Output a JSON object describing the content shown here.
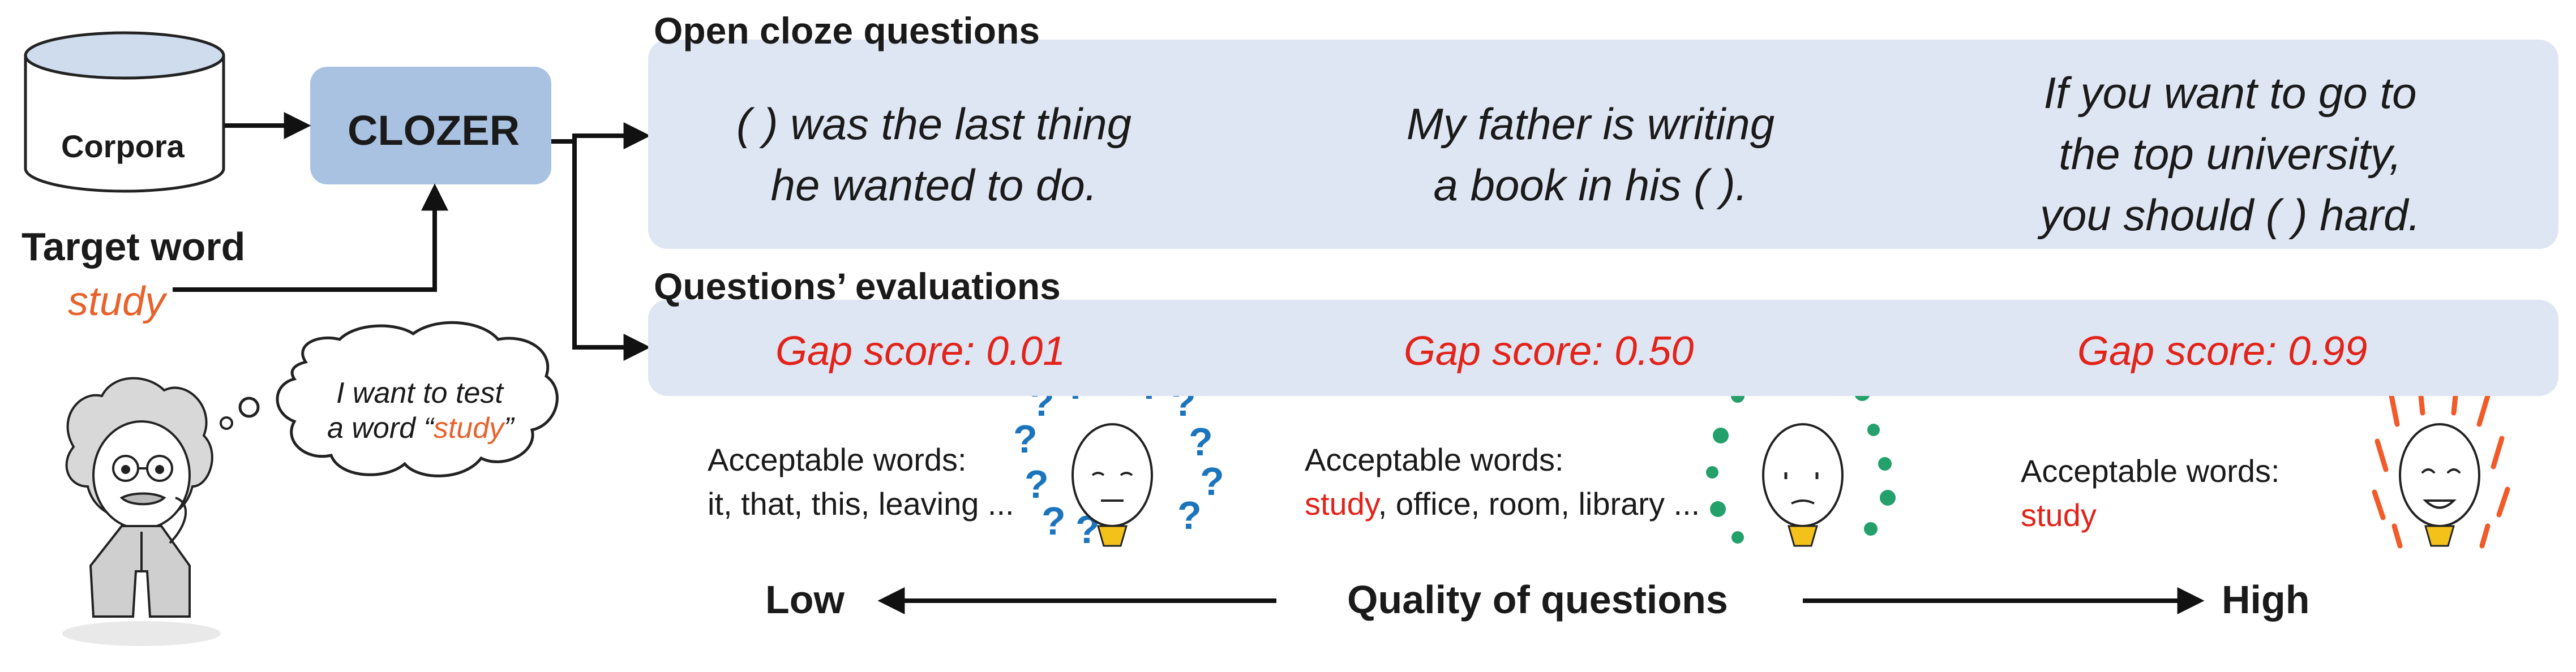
{
  "inputs": {
    "corpora_label": "Corpora",
    "target_word_title": "Target word",
    "target_word": "study"
  },
  "model": {
    "label": "CLOZER"
  },
  "speech_bubble": {
    "line1": "I want to test",
    "line2_prefix": "a word “",
    "line2_word": "study",
    "line2_suffix": "”"
  },
  "open_cloze": {
    "title": "Open cloze questions",
    "questions": [
      {
        "lines": [
          "(      ) was the last thing",
          "he wanted to do."
        ]
      },
      {
        "lines": [
          "My father is writing",
          "a book in his (      )."
        ]
      },
      {
        "lines": [
          "If you want to go to",
          "the top university,",
          "you should (      ) hard."
        ]
      }
    ]
  },
  "evaluations": {
    "title": "Questions’ evaluations",
    "items": [
      {
        "gap_score": "Gap score: 0.01",
        "acceptable_label": "Acceptable words:",
        "acceptable_highlight": "",
        "acceptable_rest": "it, that, this, leaving ...",
        "reaction_icon": "question-marks-icon"
      },
      {
        "gap_score": "Gap score: 0.50",
        "acceptable_label": "Acceptable words:",
        "acceptable_highlight": "study",
        "acceptable_rest": ", office, room, library ...",
        "reaction_icon": "dots-icon"
      },
      {
        "gap_score": "Gap score: 0.99",
        "acceptable_label": "Acceptable words:",
        "acceptable_highlight": "study",
        "acceptable_rest": "",
        "reaction_icon": "exclamation-marks-icon"
      }
    ]
  },
  "quality_axis": {
    "low": "Low",
    "label": "Quality of questions",
    "high": "High"
  },
  "colors": {
    "panel": "#dfe6f3",
    "model_box": "#a9c2e2",
    "gap_score": "#e2231a",
    "target_word": "#e8622c",
    "question_marks": "#1c75bc",
    "dots": "#23a06b",
    "exclamations": "#f15a29",
    "collar": "#f2c21b"
  }
}
